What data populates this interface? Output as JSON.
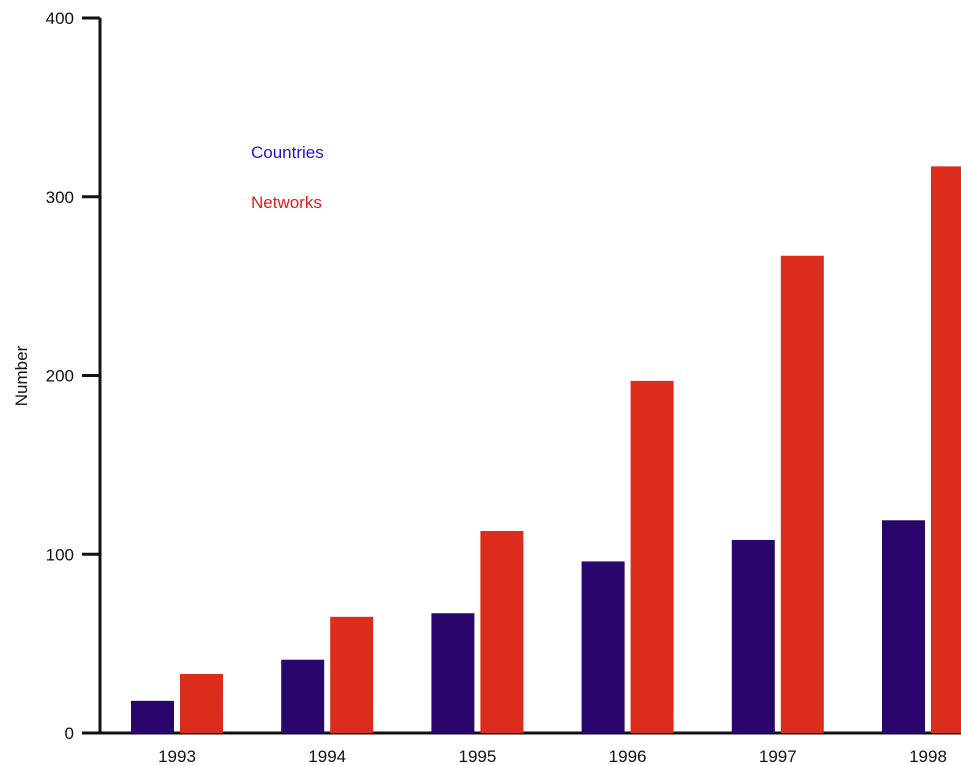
{
  "chart_data": {
    "type": "bar",
    "title": "",
    "xlabel": "",
    "ylabel": "Number",
    "ylim": [
      0,
      400
    ],
    "yticks": [
      0,
      100,
      200,
      300,
      400
    ],
    "grid": false,
    "legend_position": "top-left",
    "categories": [
      "1993",
      "1994",
      "1995",
      "1996",
      "1997",
      "1998"
    ],
    "series": [
      {
        "name": "Countries",
        "color": "#2a066c",
        "label_color": "#1a14d6",
        "values": [
          18,
          41,
          67,
          96,
          108,
          119
        ]
      },
      {
        "name": "Networks",
        "color": "#dc2d1c",
        "label_color": "#e21e17",
        "values": [
          33,
          65,
          113,
          197,
          267,
          317
        ]
      }
    ]
  }
}
